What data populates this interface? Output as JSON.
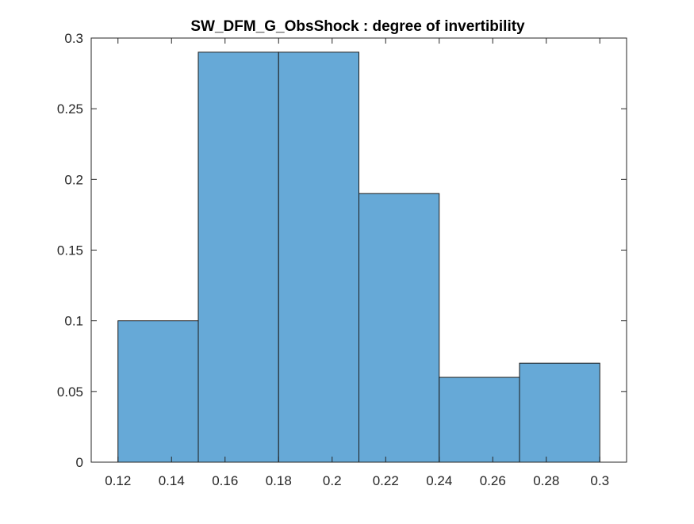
{
  "chart_data": {
    "type": "bar",
    "title": "SW_DFM_G_ObsShock : degree of invertibility",
    "xlabel": "",
    "ylabel": "",
    "xlim": [
      0.11,
      0.31
    ],
    "ylim": [
      0,
      0.3
    ],
    "bin_edges": [
      0.12,
      0.15,
      0.18,
      0.21,
      0.24,
      0.27,
      0.3
    ],
    "values": [
      0.1,
      0.29,
      0.29,
      0.19,
      0.06,
      0.07
    ],
    "xticks": [
      0.12,
      0.14,
      0.16,
      0.18,
      0.2,
      0.22,
      0.24,
      0.26,
      0.28,
      0.3
    ],
    "xtick_labels": [
      "0.12",
      "0.14",
      "0.16",
      "0.18",
      "0.2",
      "0.22",
      "0.24",
      "0.26",
      "0.28",
      "0.3"
    ],
    "yticks": [
      0,
      0.05,
      0.1,
      0.15,
      0.2,
      0.25,
      0.3
    ],
    "ytick_labels": [
      "0",
      "0.05",
      "0.1",
      "0.15",
      "0.2",
      "0.25",
      "0.3"
    ],
    "grid": false,
    "legend": "none",
    "colors": {
      "bar_fill": "#66a9d7",
      "bar_edge": "#1a1a1a",
      "axes": "#262626",
      "background": "#ffffff"
    }
  }
}
